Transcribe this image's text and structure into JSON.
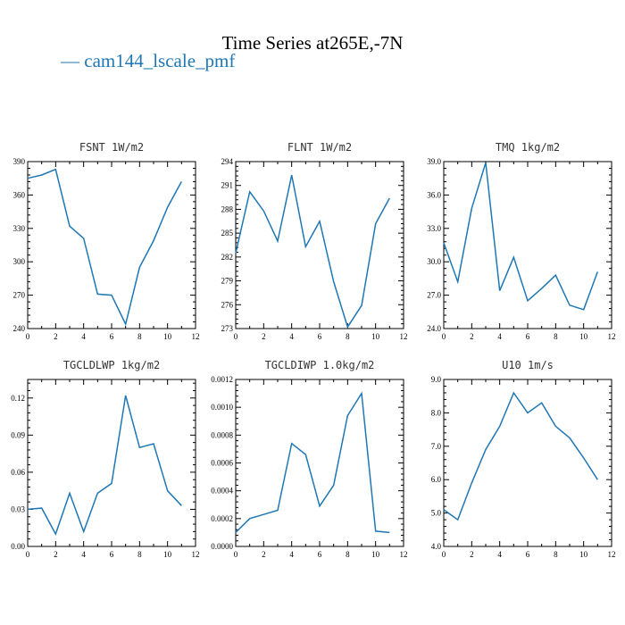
{
  "title": "Time Series at265E,-7N",
  "legend": {
    "label": "— cam144_lscale_pmf",
    "color": "#1f77b4"
  },
  "chart_data": [
    {
      "type": "line",
      "title": "FSNT   1W/m2",
      "x": [
        0,
        1,
        2,
        3,
        4,
        5,
        6,
        7,
        8,
        9,
        10,
        11
      ],
      "series": [
        {
          "name": "cam144_lscale_pmf",
          "values": [
            375,
            378,
            383,
            332,
            321,
            271,
            270,
            244,
            295,
            319,
            349,
            372
          ]
        }
      ],
      "xlim": [
        0,
        12
      ],
      "ylim": [
        240,
        390
      ],
      "xticks": [
        "0",
        "2",
        "4",
        "6",
        "8",
        "10",
        "12"
      ],
      "yticks": [
        "240",
        "270",
        "300",
        "330",
        "360",
        "390"
      ]
    },
    {
      "type": "line",
      "title": "FLNT   1W/m2",
      "x": [
        0,
        1,
        2,
        3,
        4,
        5,
        6,
        7,
        8,
        9,
        10,
        11
      ],
      "series": [
        {
          "name": "cam144_lscale_pmf",
          "values": [
            282.5,
            290.2,
            287.8,
            284,
            292.3,
            283.3,
            286.5,
            278.9,
            273.2,
            275.9,
            286.2,
            289.4
          ]
        }
      ],
      "xlim": [
        0,
        12
      ],
      "ylim": [
        273,
        294
      ],
      "xticks": [
        "0",
        "2",
        "4",
        "6",
        "8",
        "10",
        "12"
      ],
      "yticks": [
        "273",
        "276",
        "279",
        "282",
        "285",
        "288",
        "291",
        "294"
      ]
    },
    {
      "type": "line",
      "title": "TMQ   1kg/m2",
      "x": [
        0,
        1,
        2,
        3,
        4,
        5,
        6,
        7,
        8,
        9,
        10,
        11
      ],
      "series": [
        {
          "name": "cam144_lscale_pmf",
          "values": [
            31.7,
            28.2,
            34.8,
            38.9,
            27.4,
            30.4,
            26.5,
            27.6,
            28.8,
            26.1,
            25.7,
            29.1
          ]
        }
      ],
      "xlim": [
        0,
        12
      ],
      "ylim": [
        24.0,
        39.0
      ],
      "xticks": [
        "0",
        "2",
        "4",
        "6",
        "8",
        "10",
        "12"
      ],
      "yticks": [
        "24.0",
        "27.0",
        "30.0",
        "33.0",
        "36.0",
        "39.0"
      ]
    },
    {
      "type": "line",
      "title": "TGCLDLWP   1kg/m2",
      "x": [
        0,
        1,
        2,
        3,
        4,
        5,
        6,
        7,
        8,
        9,
        10,
        11
      ],
      "series": [
        {
          "name": "cam144_lscale_pmf",
          "values": [
            0.03,
            0.031,
            0.01,
            0.043,
            0.012,
            0.043,
            0.051,
            0.122,
            0.08,
            0.083,
            0.045,
            0.033
          ]
        }
      ],
      "xlim": [
        0,
        12
      ],
      "ylim": [
        0,
        0.135
      ],
      "xticks": [
        "0",
        "2",
        "4",
        "6",
        "8",
        "10",
        "12"
      ],
      "yticks": [
        "0.00",
        "0.03",
        "0.06",
        "0.09",
        "0.12"
      ]
    },
    {
      "type": "line",
      "title": "TGCLDIWP   1.0kg/m2",
      "x": [
        0,
        1,
        2,
        3,
        4,
        5,
        6,
        7,
        8,
        9,
        10,
        11
      ],
      "series": [
        {
          "name": "cam144_lscale_pmf",
          "values": [
            0.0001,
            0.0002,
            0.00023,
            0.00026,
            0.00074,
            0.00066,
            0.00029,
            0.00044,
            0.00094,
            0.0011,
            0.00011,
            0.0001
          ]
        }
      ],
      "xlim": [
        0,
        12
      ],
      "ylim": [
        0,
        0.0012
      ],
      "xticks": [
        "0",
        "2",
        "4",
        "6",
        "8",
        "10",
        "12"
      ],
      "yticks": [
        "0.0000",
        "0.0002",
        "0.0004",
        "0.0006",
        "0.0008",
        "0.0010",
        "0.0012"
      ]
    },
    {
      "type": "line",
      "title": "U10   1m/s",
      "x": [
        0,
        1,
        2,
        3,
        4,
        5,
        6,
        7,
        8,
        9,
        10,
        11
      ],
      "series": [
        {
          "name": "cam144_lscale_pmf",
          "values": [
            5.1,
            4.8,
            5.9,
            6.9,
            7.6,
            8.6,
            8.0,
            8.3,
            7.6,
            7.25,
            6.65,
            6.0
          ]
        }
      ],
      "xlim": [
        0,
        12
      ],
      "ylim": [
        4.0,
        9.0
      ],
      "xticks": [
        "0",
        "2",
        "4",
        "6",
        "8",
        "10",
        "12"
      ],
      "yticks": [
        "4.0",
        "5.0",
        "6.0",
        "7.0",
        "8.0",
        "9.0"
      ]
    }
  ]
}
